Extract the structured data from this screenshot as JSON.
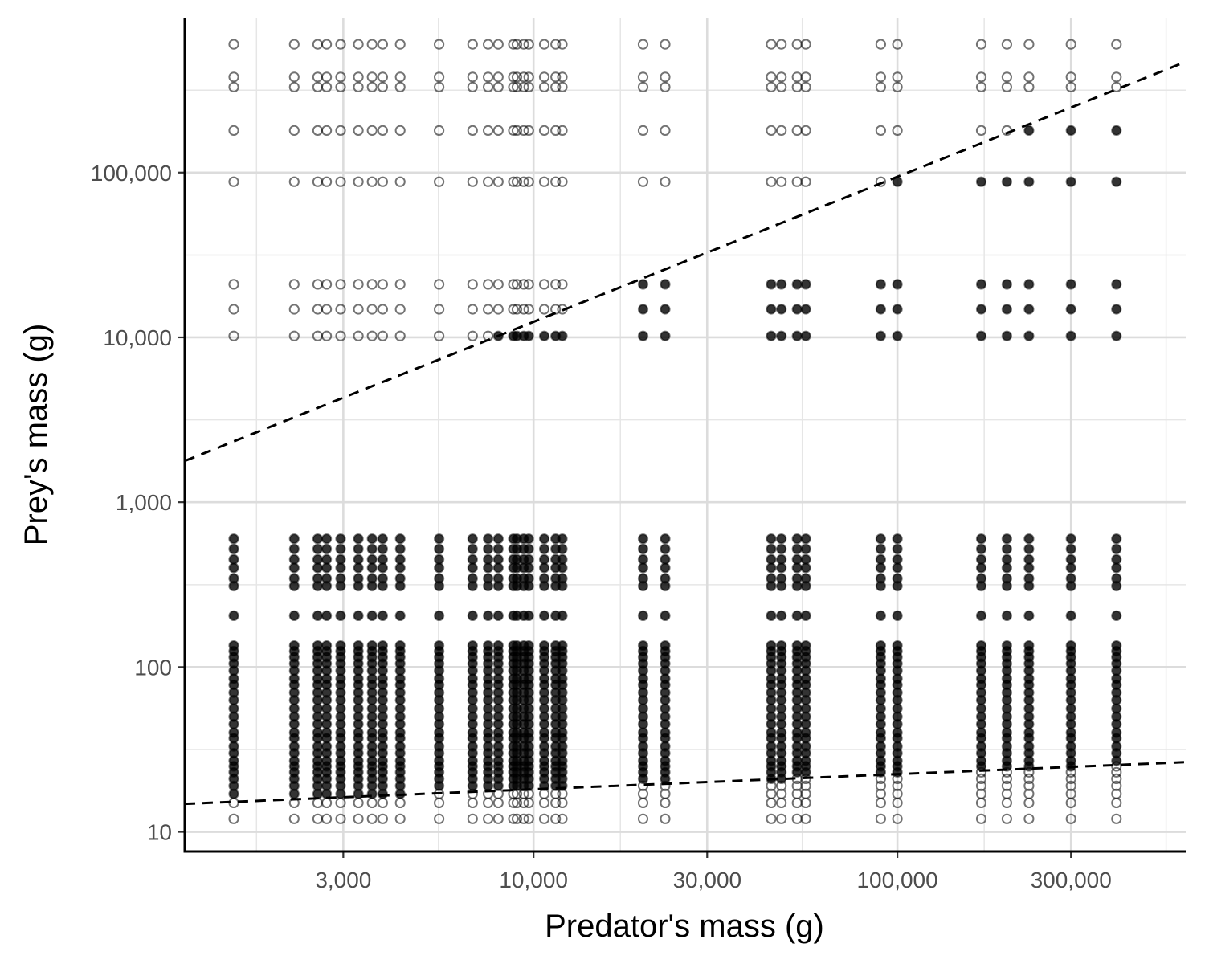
{
  "chart_data": {
    "type": "scatter",
    "title": "",
    "xlabel": "Predator's mass (g)",
    "ylabel": "Prey's mass (g)",
    "x_scale": "log10",
    "y_scale": "log10",
    "xlim": [
      1100,
      620000
    ],
    "ylim": [
      7.6,
      870000
    ],
    "x_ticks": [
      {
        "value": 3000,
        "label": "3,000"
      },
      {
        "value": 10000,
        "label": "10,000"
      },
      {
        "value": 30000,
        "label": "30,000"
      },
      {
        "value": 100000,
        "label": "100,000"
      },
      {
        "value": 300000,
        "label": "300,000"
      }
    ],
    "x_minor_gridlines": [
      1732,
      5477,
      17320,
      54770,
      173200,
      547700
    ],
    "y_ticks": [
      {
        "value": 10,
        "label": "10"
      },
      {
        "value": 100,
        "label": "100"
      },
      {
        "value": 1000,
        "label": "1,000"
      },
      {
        "value": 10000,
        "label": "10,000"
      },
      {
        "value": 100000,
        "label": "100,000"
      }
    ],
    "y_minor_gridlines": [
      31.6,
      316,
      3160,
      31600,
      316000
    ],
    "grid": true,
    "legend": "none",
    "predator_masses": [
      1500,
      2200,
      2550,
      2700,
      2950,
      3300,
      3600,
      3850,
      4300,
      5500,
      6800,
      7500,
      8000,
      8800,
      9000,
      9400,
      9700,
      10700,
      11500,
      12000,
      20000,
      23000,
      45000,
      48000,
      53000,
      56000,
      90000,
      100000,
      170000,
      200000,
      230000,
      300000,
      400000
    ],
    "prey_masses": [
      12,
      15,
      17,
      19,
      21,
      23,
      25,
      27,
      30,
      33,
      37,
      40,
      45,
      50,
      56,
      63,
      70,
      78,
      85,
      95,
      105,
      115,
      125,
      135,
      205,
      310,
      345,
      400,
      450,
      520,
      600,
      10200,
      14800,
      21000,
      88000,
      180000,
      330000,
      380000,
      600000
    ],
    "series": [
      {
        "name": "",
        "style": "filled",
        "rule": "prey mass between the two dashed bounds",
        "points": "every predator-prey pair in the grid whose prey mass lies between lower_bound and upper_bound"
      },
      {
        "name": "",
        "style": "open",
        "rule": "prey mass above upper bound or below lower bound",
        "points": "every predator-prey pair in the grid whose prey mass lies outside the two bounds"
      }
    ],
    "lower_bound": {
      "style": "dashed",
      "points": [
        [
          1100,
          14.8
        ],
        [
          620000,
          26.5
        ]
      ]
    },
    "upper_bound": {
      "style": "dashed",
      "points": [
        [
          1100,
          1780
        ],
        [
          620000,
          470000
        ]
      ]
    }
  },
  "colors": {
    "points": "#000000",
    "grid": "#dcdcdc",
    "axis": "#000000",
    "tick_text": "#4d4d4d"
  }
}
